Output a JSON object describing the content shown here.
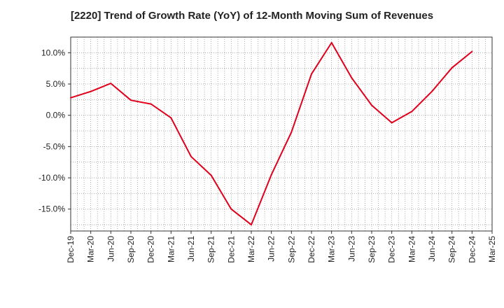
{
  "chart_data": {
    "type": "line",
    "title": "[2220]  Trend of Growth Rate (YoY) of 12-Month Moving Sum of Revenues",
    "xlabel": "",
    "ylabel": "",
    "x_tick_labels": [
      "Dec-19",
      "Mar-20",
      "Jun-20",
      "Sep-20",
      "Dec-20",
      "Mar-21",
      "Jun-21",
      "Sep-21",
      "Dec-21",
      "Mar-22",
      "Jun-22",
      "Sep-22",
      "Dec-22",
      "Mar-23",
      "Jun-23",
      "Sep-23",
      "Dec-23",
      "Mar-24",
      "Jun-24",
      "Sep-24",
      "Dec-24",
      "Mar-25"
    ],
    "y_tick_values": [
      10,
      5,
      0,
      -5,
      -10,
      -15
    ],
    "y_tick_labels": [
      "10.0%",
      "5.0%",
      "0.0%",
      "-5.0%",
      "-10.0%",
      "-15.0%"
    ],
    "ylim": [
      -18.5,
      12.5
    ],
    "grid": true,
    "line_color": "#e0001b",
    "series": [
      {
        "x": [
          "Dec-19",
          "Mar-20",
          "Jun-20",
          "Sep-20",
          "Dec-20",
          "Mar-21",
          "Jun-21",
          "Sep-21",
          "Dec-21",
          "Mar-22",
          "Jun-22",
          "Sep-22",
          "Dec-22",
          "Mar-23",
          "Jun-23",
          "Sep-23",
          "Dec-23",
          "Mar-24",
          "Jun-24",
          "Sep-24",
          "Dec-24"
        ],
        "values": [
          2.8,
          3.8,
          5.1,
          2.4,
          1.8,
          -0.4,
          -6.6,
          -9.6,
          -15.0,
          -17.5,
          -9.5,
          -2.7,
          6.6,
          11.6,
          6.0,
          1.6,
          -1.2,
          0.6,
          3.8,
          7.6,
          10.2
        ]
      }
    ]
  }
}
